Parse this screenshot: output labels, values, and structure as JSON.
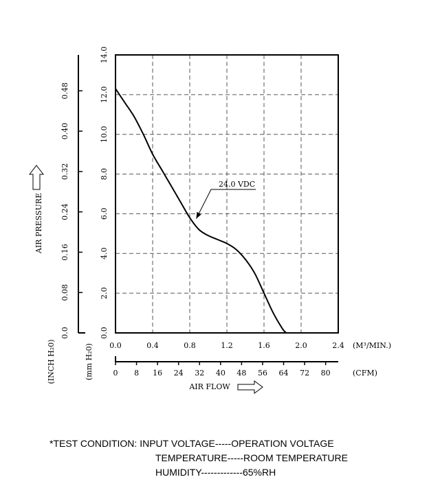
{
  "chart_data": {
    "type": "line",
    "series": [
      {
        "name": "24.0 VDC",
        "x": [
          0.0,
          0.1,
          0.2,
          0.3,
          0.4,
          0.5,
          0.6,
          0.7,
          0.8,
          0.9,
          1.0,
          1.1,
          1.2,
          1.3,
          1.4,
          1.5,
          1.6,
          1.7,
          1.8,
          1.84
        ],
        "y": [
          12.3,
          11.6,
          10.9,
          10.0,
          9.0,
          8.2,
          7.4,
          6.6,
          5.8,
          5.2,
          4.9,
          4.7,
          4.5,
          4.2,
          3.7,
          3.0,
          2.0,
          1.0,
          0.2,
          0.0
        ]
      }
    ],
    "annotation": "24.0 VDC",
    "x_primary": {
      "unit": "(M³/MIN.)",
      "ticks": [
        "0.0",
        "0.4",
        "0.8",
        "1.2",
        "1.6",
        "2.0",
        "2.4"
      ],
      "range": [
        0,
        2.4
      ]
    },
    "x_secondary": {
      "unit": "(CFM)",
      "ticks": [
        "0",
        "8",
        "16",
        "24",
        "32",
        "40",
        "48",
        "56",
        "64",
        "72",
        "80"
      ],
      "range": [
        0,
        84.8
      ]
    },
    "xlabel": "AIR FLOW",
    "y_primary": {
      "unit": "(mm H₂0)",
      "ticks": [
        "0.0",
        "2.0",
        "4.0",
        "6.0",
        "8.0",
        "10.0",
        "12.0",
        "14.0"
      ],
      "range": [
        0,
        14
      ]
    },
    "y_secondary": {
      "unit": "(INCH H₂0)",
      "ticks": [
        "0.0",
        "0.08",
        "0.16",
        "0.24",
        "0.32",
        "0.40",
        "0.48"
      ],
      "range": [
        0,
        0.5512
      ]
    },
    "ylabel": "AIR PRESSURE",
    "grid": true
  },
  "test_condition": {
    "line1": "*TEST CONDITION: INPUT VOLTAGE-----OPERATION VOLTAGE",
    "line2": "TEMPERATURE-----ROOM TEMPERATURE",
    "line3": "HUMIDITY-------------65%RH"
  }
}
